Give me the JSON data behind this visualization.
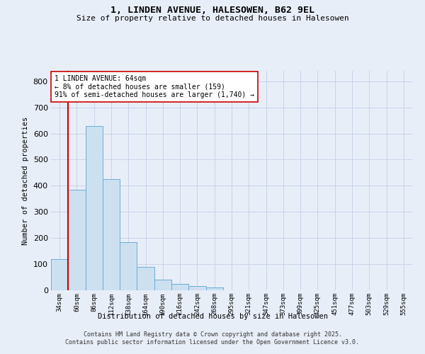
{
  "title_line1": "1, LINDEN AVENUE, HALESOWEN, B62 9EL",
  "title_line2": "Size of property relative to detached houses in Halesowen",
  "xlabel": "Distribution of detached houses by size in Halesowen",
  "ylabel": "Number of detached properties",
  "categories": [
    "34sqm",
    "60sqm",
    "86sqm",
    "112sqm",
    "138sqm",
    "164sqm",
    "190sqm",
    "216sqm",
    "242sqm",
    "268sqm",
    "295sqm",
    "321sqm",
    "347sqm",
    "373sqm",
    "399sqm",
    "425sqm",
    "451sqm",
    "477sqm",
    "503sqm",
    "529sqm",
    "555sqm"
  ],
  "values": [
    120,
    385,
    630,
    425,
    185,
    90,
    42,
    25,
    15,
    12,
    0,
    0,
    0,
    0,
    0,
    0,
    0,
    0,
    0,
    0,
    0
  ],
  "bar_color": "#cce0f0",
  "bar_edge_color": "#6baed6",
  "grid_color": "#c8d4e8",
  "bg_color": "#e8eef8",
  "vline_x": 0.5,
  "vline_color": "#cc0000",
  "annotation_text": "1 LINDEN AVENUE: 64sqm\n← 8% of detached houses are smaller (159)\n91% of semi-detached houses are larger (1,740) →",
  "annotation_box_color": "#ffffff",
  "annotation_box_edge": "#cc0000",
  "ylim": [
    0,
    840
  ],
  "yticks": [
    0,
    100,
    200,
    300,
    400,
    500,
    600,
    700,
    800
  ],
  "footer": "Contains HM Land Registry data © Crown copyright and database right 2025.\nContains public sector information licensed under the Open Government Licence v3.0."
}
